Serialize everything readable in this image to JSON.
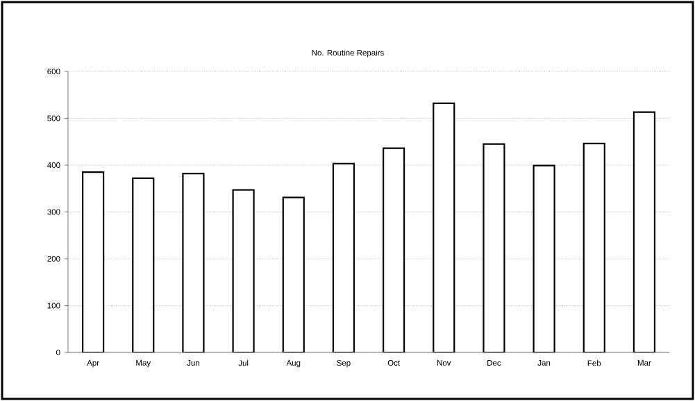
{
  "chart_data": {
    "type": "bar",
    "title": "No. Routine Repairs",
    "categories": [
      "Apr",
      "May",
      "Jun",
      "Jul",
      "Aug",
      "Sep",
      "Oct",
      "Nov",
      "Dec",
      "Jan",
      "Feb",
      "Mar"
    ],
    "values": [
      385,
      372,
      382,
      347,
      331,
      403,
      436,
      532,
      445,
      399,
      446,
      513
    ],
    "color": "#ffffff",
    "ylim": [
      0,
      600
    ],
    "yticks": [
      0,
      100,
      200,
      300,
      400,
      500,
      600
    ],
    "grid": "y"
  }
}
